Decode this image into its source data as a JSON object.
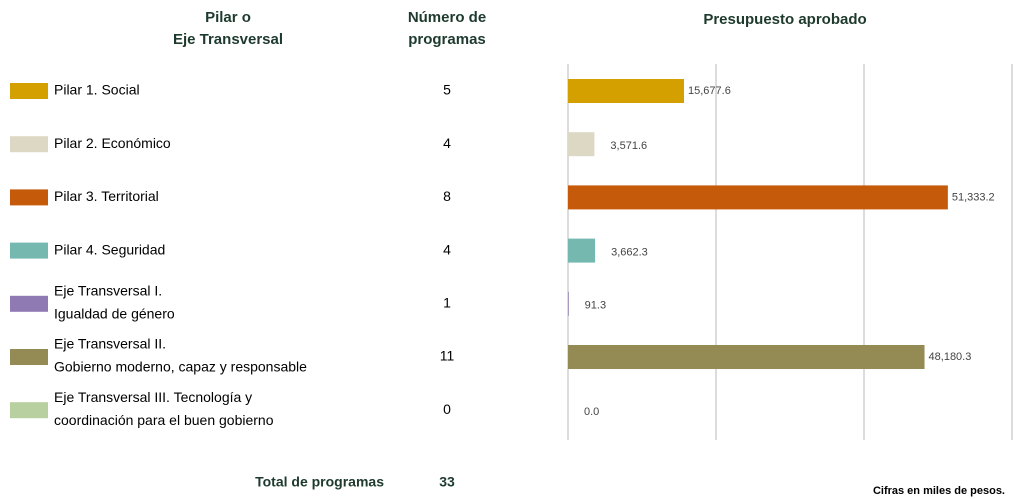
{
  "chart_data": {
    "type": "bar",
    "column_headers": [
      [
        "Pilar o",
        "Eje Transversal"
      ],
      [
        "Número de",
        "programas"
      ],
      [
        "Presupuesto aprobado"
      ]
    ],
    "categories": [
      [
        "Pilar 1. Social"
      ],
      [
        "Pilar 2. Económico"
      ],
      [
        "Pilar 3. Territorial"
      ],
      [
        "Pilar 4. Seguridad"
      ],
      [
        "Eje Transversal I.",
        "Igualdad de género"
      ],
      [
        "Eje Transversal II.",
        "Gobierno moderno, capaz y responsable"
      ],
      [
        "Eje Transversal III. Tecnología y",
        "coordinación para el buen gobierno"
      ]
    ],
    "colors": [
      "#d4a000",
      "#ddd8c3",
      "#c55a0a",
      "#74b8b0",
      "#8f7ab4",
      "#948a54",
      "#b8cfa0"
    ],
    "programs": [
      5,
      4,
      8,
      4,
      1,
      11,
      0
    ],
    "values": [
      15677.6,
      3571.6,
      51333.2,
      3662.3,
      91.3,
      48180.3,
      0
    ],
    "value_labels": [
      "15,677.6",
      "3,571.6",
      "51,333.2",
      "3,662.3",
      "91.3",
      "48,180.3",
      "0.0"
    ],
    "xlim": [
      0,
      60000
    ],
    "xticks": [
      0,
      20000,
      40000,
      60000
    ],
    "grid": true,
    "total_label": "Total de programas",
    "total": 33,
    "footnote": "Cifras en miles de pesos."
  }
}
